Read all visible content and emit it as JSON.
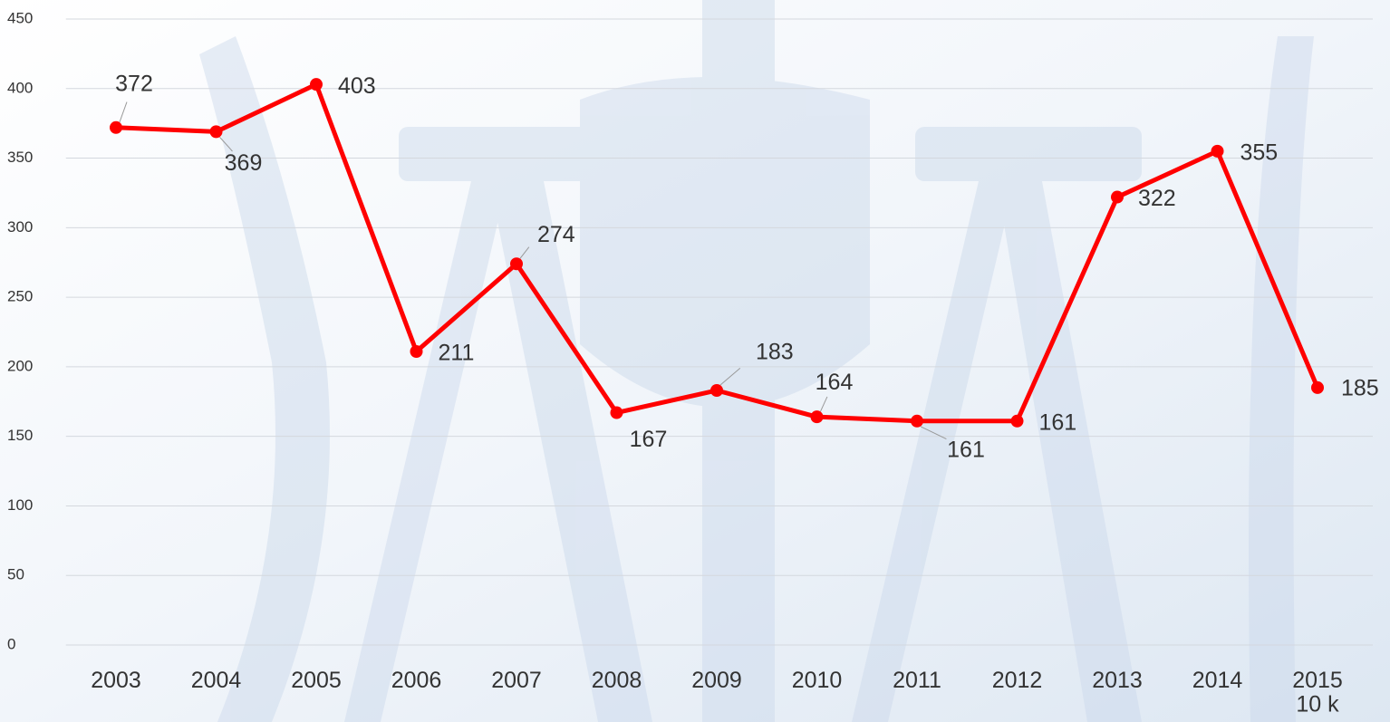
{
  "chart_data": {
    "type": "line",
    "categories": [
      "2003",
      "2004",
      "2005",
      "2006",
      "2007",
      "2008",
      "2009",
      "2010",
      "2011",
      "2012",
      "2013",
      "2014",
      "2015\n10 k"
    ],
    "series": [
      {
        "color": "#ff0000",
        "values": [
          372,
          369,
          403,
          211,
          274,
          167,
          183,
          164,
          161,
          161,
          322,
          355,
          185
        ]
      }
    ],
    "ylim": [
      0,
      450
    ],
    "yticks": [
      0,
      50,
      100,
      150,
      200,
      250,
      300,
      350,
      400,
      450
    ],
    "grid": true
  }
}
